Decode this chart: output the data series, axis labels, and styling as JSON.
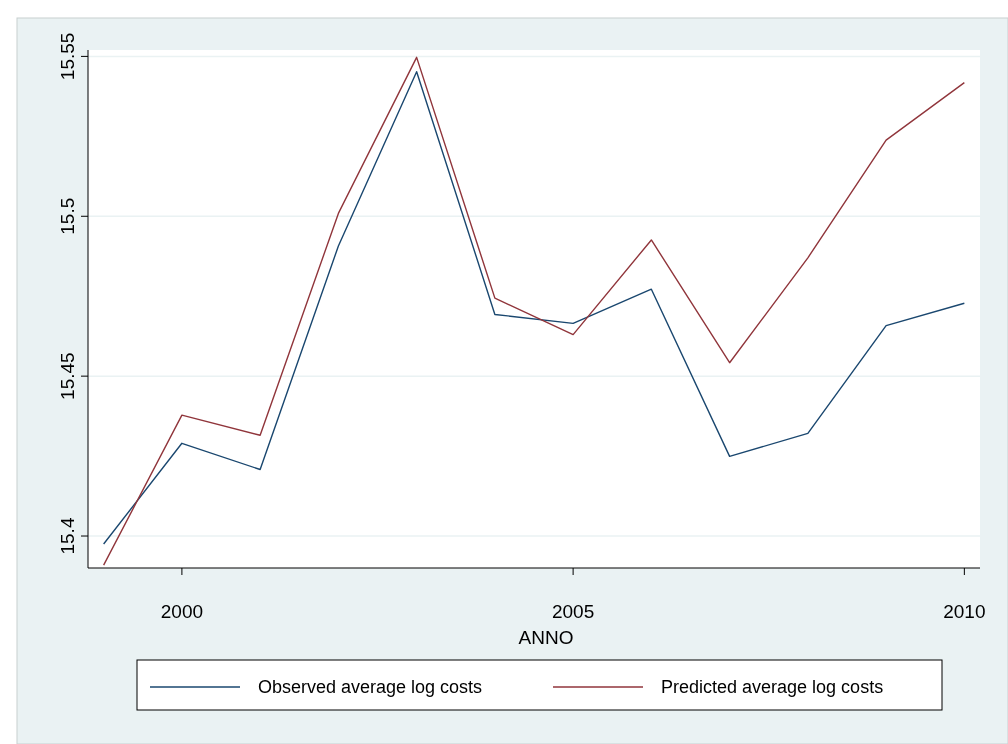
{
  "chart_data": {
    "type": "line",
    "xlabel": "ANNO",
    "x": [
      1999,
      2000,
      2001,
      2002,
      2003,
      2004,
      2005,
      2006,
      2007,
      2008,
      2009,
      2010
    ],
    "series": [
      {
        "name": "Observed average log costs",
        "color": "#1a476f",
        "values": [
          15.3975,
          15.429,
          15.4208,
          15.4907,
          15.5452,
          15.4693,
          15.4665,
          15.4772,
          15.4249,
          15.4321,
          15.4658,
          15.4728
        ]
      },
      {
        "name": "Predicted average log costs",
        "color": "#90353b",
        "values": [
          15.3909,
          15.4378,
          15.4315,
          15.5009,
          15.5497,
          15.4744,
          15.463,
          15.4926,
          15.4542,
          15.487,
          15.5238,
          15.5418
        ]
      }
    ],
    "xlim": [
      1998.8,
      2010.2
    ],
    "xticks": [
      2000,
      2005,
      2010
    ],
    "ylim": [
      15.39,
      15.552
    ],
    "yticks": [
      15.4,
      15.45,
      15.5,
      15.55
    ],
    "grid": "y",
    "legend": "bottom",
    "marker": "none",
    "line_style": "solid"
  }
}
